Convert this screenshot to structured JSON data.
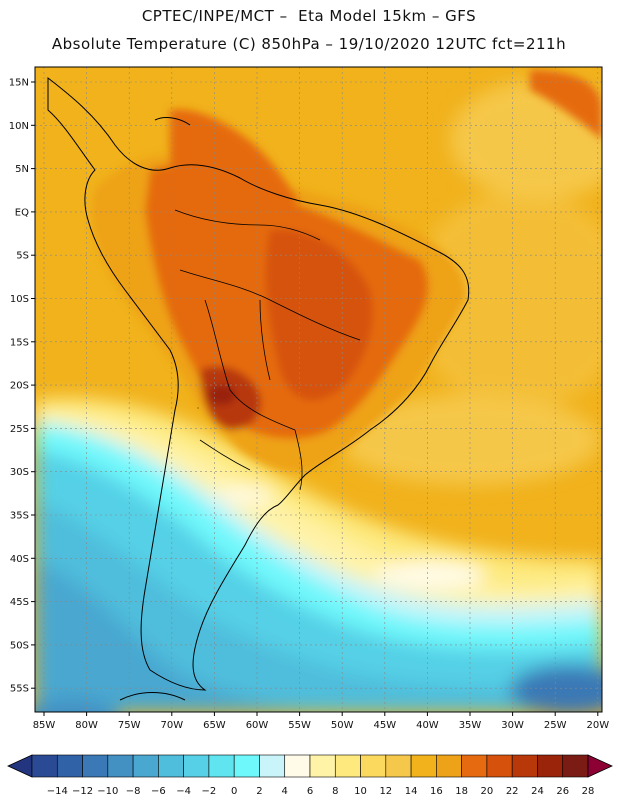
{
  "header": {
    "title_line1": "CPTEC/INPE/MCT –  Eta Model 15km – GFS",
    "title_line2": "Absolute Temperature (C) 850hPa – 19/10/2020 12UTC fct=211h"
  },
  "map": {
    "lat_labels": [
      "15N",
      "10N",
      "5N",
      "EQ",
      "5S",
      "10S",
      "15S",
      "20S",
      "25S",
      "30S",
      "35S",
      "40S",
      "45S",
      "50S",
      "55S"
    ],
    "lon_labels": [
      "85W",
      "80W",
      "75W",
      "70W",
      "65W",
      "60W",
      "55W",
      "50W",
      "45W",
      "40W",
      "35W",
      "30W",
      "25W",
      "20W"
    ]
  },
  "colorbar": {
    "labels": [
      "-14",
      "-12",
      "-10",
      "-8",
      "-6",
      "-4",
      "-2",
      "0",
      "2",
      "4",
      "6",
      "8",
      "10",
      "12",
      "14",
      "16",
      "18",
      "20",
      "22",
      "24",
      "26",
      "28"
    ],
    "colors": [
      "#23357f",
      "#2a4a96",
      "#3062a8",
      "#3a78b6",
      "#4390c2",
      "#4aa7d0",
      "#4fbddc",
      "#55d0e6",
      "#5fe4f0",
      "#6ff8fb",
      "#c8f4fa",
      "#fffbe8",
      "#fff3a8",
      "#fde97e",
      "#fbd95e",
      "#f5c74a",
      "#f1b21c",
      "#eea217",
      "#e56a10",
      "#d6520c",
      "#b8380a",
      "#992409",
      "#7a1c14",
      "#8c0033"
    ]
  }
}
